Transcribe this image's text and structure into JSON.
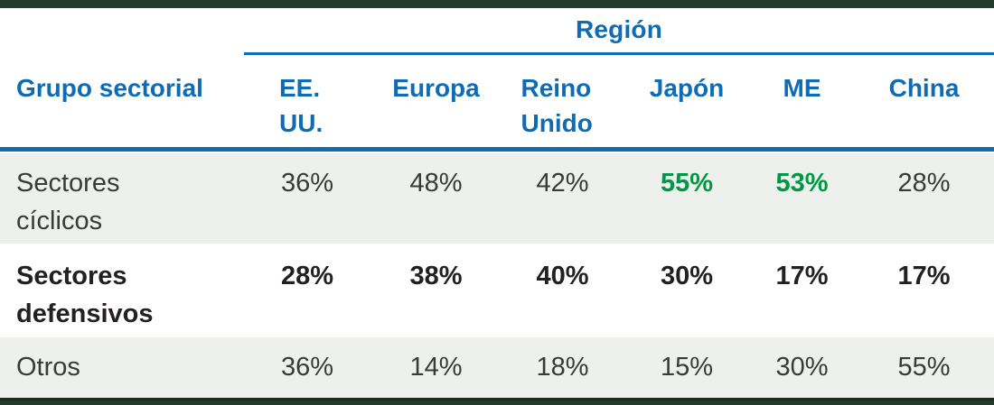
{
  "chart_data": {
    "type": "table",
    "title": "Región",
    "row_group_label": "Grupo sectorial",
    "columns": [
      "EE. UU.",
      "Europa",
      "Reino Unido",
      "Japón",
      "ME",
      "China"
    ],
    "rows": [
      {
        "label": "Sectores cíclicos",
        "values": [
          "36%",
          "48%",
          "42%",
          "55%",
          "53%",
          "28%"
        ],
        "highlighted_columns": [
          "Japón",
          "ME"
        ],
        "highlighted_values": [
          "55%",
          "53%"
        ]
      },
      {
        "label": "Sectores defensivos",
        "values": [
          "28%",
          "38%",
          "40%",
          "30%",
          "17%",
          "17%"
        ]
      },
      {
        "label": "Otros",
        "values": [
          "36%",
          "14%",
          "18%",
          "15%",
          "30%",
          "55%"
        ]
      }
    ],
    "legend_position": "none",
    "grid": "off"
  },
  "colors": {
    "header_blue": "#0f6cb4",
    "highlight_green": "#009845",
    "row_stripe_gray": "#eef0ee",
    "band_dark_green": "#223b2c",
    "bottom_rule_dark": "#242424",
    "body_text": "#3a3a3a",
    "bold_row_text": "#242021"
  }
}
